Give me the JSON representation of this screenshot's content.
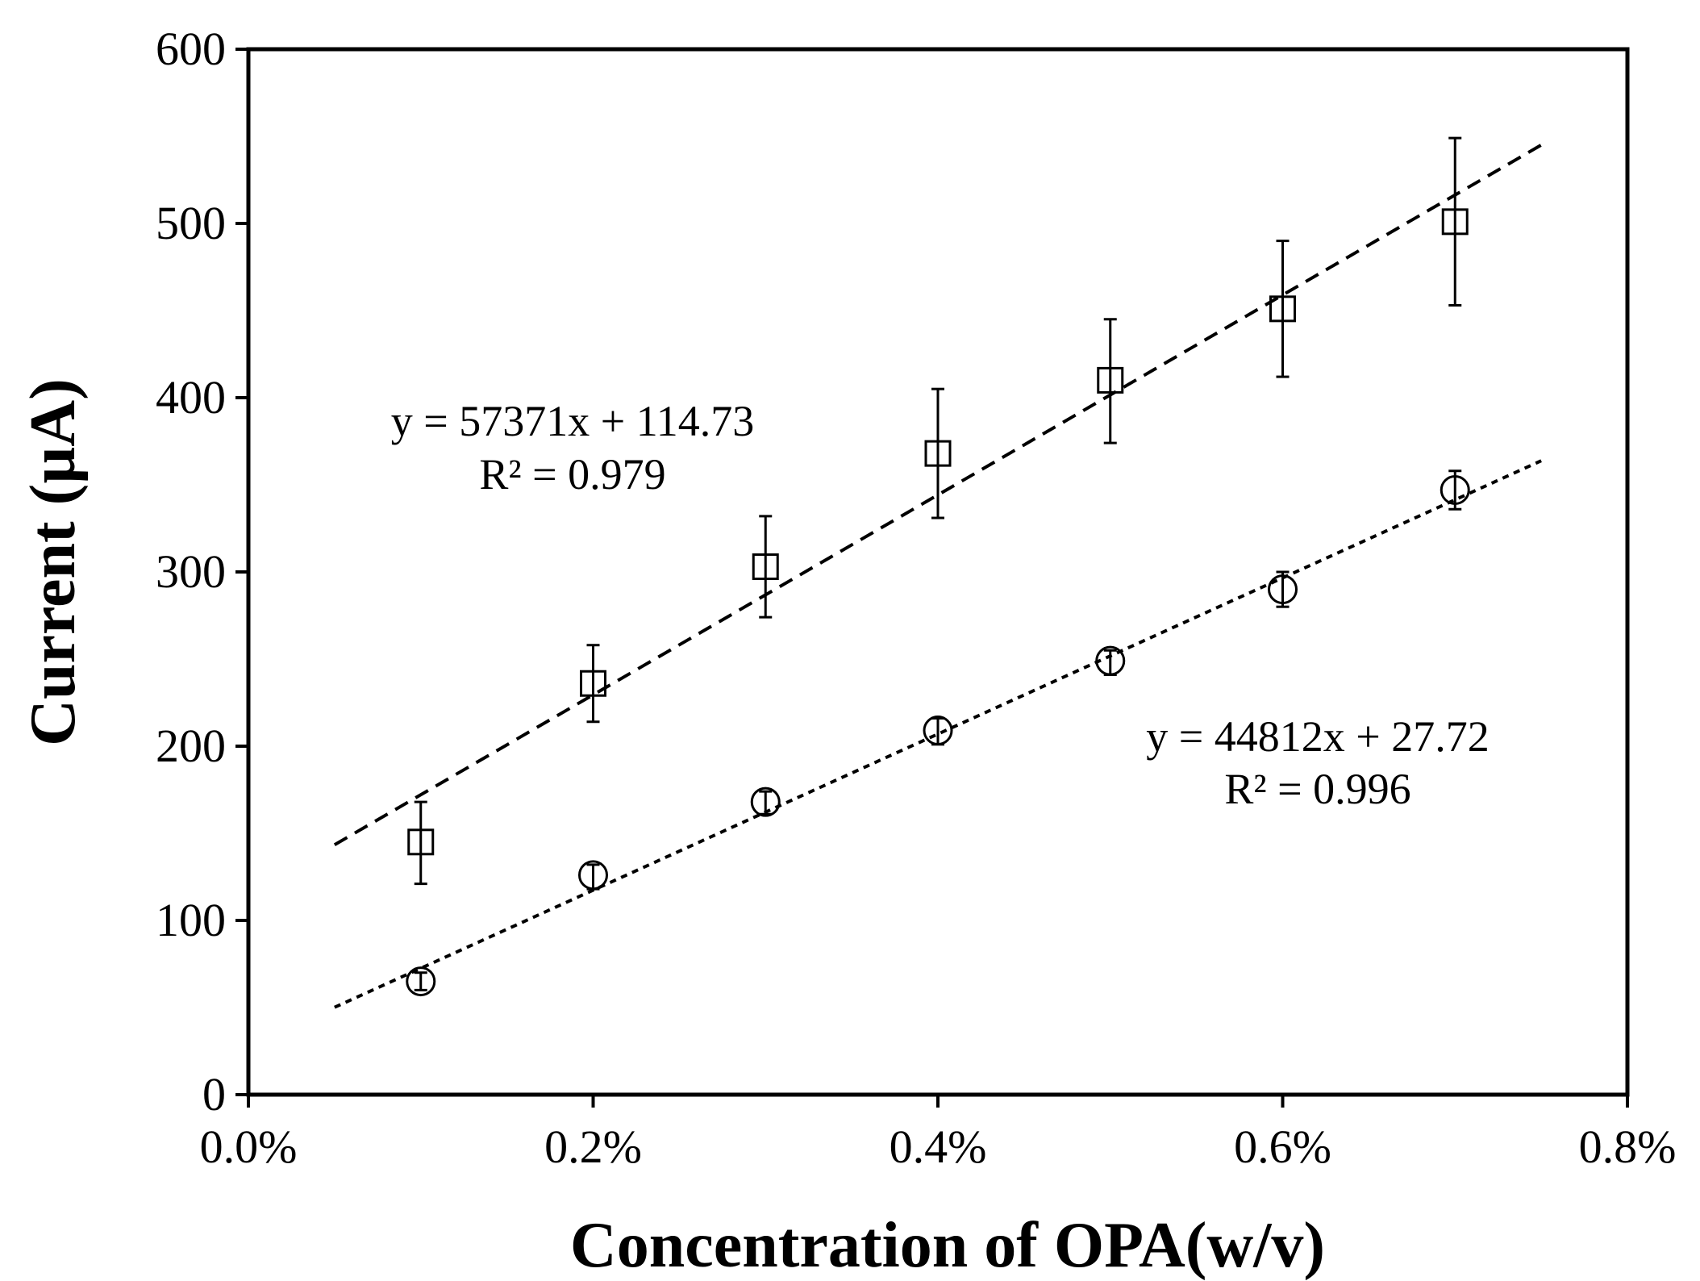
{
  "chart_data": {
    "type": "scatter",
    "title": "",
    "xlabel": "Concentration of OPA(w/v)",
    "ylabel": "Current (µA)",
    "xlim": [
      0.0,
      0.8
    ],
    "ylim": [
      0,
      600
    ],
    "x_ticks": [
      0.0,
      0.2,
      0.4,
      0.6,
      0.8
    ],
    "x_tick_labels": [
      "0.0%",
      "0.2%",
      "0.4%",
      "0.6%",
      "0.8%"
    ],
    "y_ticks": [
      0,
      100,
      200,
      300,
      400,
      500,
      600
    ],
    "y_tick_labels": [
      "0",
      "100",
      "200",
      "300",
      "400",
      "500",
      "600"
    ],
    "grid": false,
    "series": [
      {
        "name": "squares",
        "marker": "square",
        "x": [
          0.1,
          0.2,
          0.3,
          0.4,
          0.5,
          0.6,
          0.7
        ],
        "values": [
          145,
          236,
          303,
          368,
          410,
          451,
          501
        ],
        "err_low": [
          121,
          214,
          274,
          331,
          374,
          412,
          453
        ],
        "err_high": [
          168,
          258,
          332,
          405,
          445,
          490,
          549
        ],
        "trendline": {
          "slope": 57371,
          "intercept": 114.73,
          "x_range": [
            0.05,
            0.75
          ],
          "style": "dashed",
          "equation": "y = 57371x + 114.73",
          "r_squared": "R² = 0.979"
        }
      },
      {
        "name": "circles",
        "marker": "circle",
        "x": [
          0.1,
          0.2,
          0.3,
          0.4,
          0.5,
          0.6,
          0.7
        ],
        "values": [
          65,
          126,
          168,
          209,
          249,
          290,
          347
        ],
        "err_low": [
          60,
          118,
          161,
          201,
          241,
          280,
          336
        ],
        "err_high": [
          70,
          132,
          174,
          216,
          255,
          300,
          358
        ],
        "trendline": {
          "slope": 44812,
          "intercept": 27.72,
          "x_range": [
            0.05,
            0.75
          ],
          "style": "dotted",
          "equation": "y = 44812x + 27.72",
          "r_squared": "R² = 0.996"
        }
      }
    ]
  }
}
